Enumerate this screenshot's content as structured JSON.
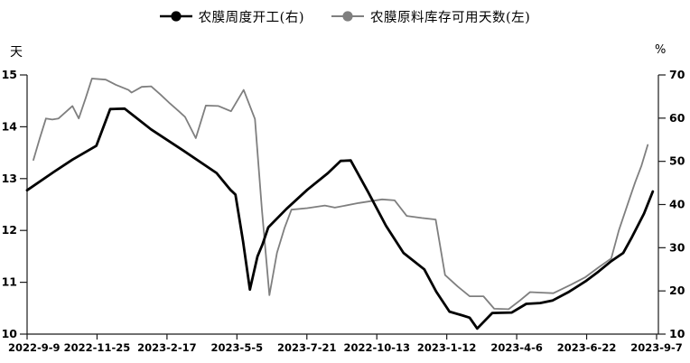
{
  "chart_data": {
    "type": "line",
    "title": "",
    "grid": false,
    "legend_position": "top",
    "left_axis": {
      "unit": "天",
      "min": 10,
      "max": 15,
      "ticks": [
        15,
        14,
        13,
        12,
        11,
        10
      ]
    },
    "right_axis": {
      "unit": "%",
      "min": 10,
      "max": 70,
      "ticks": [
        70,
        60,
        50,
        40,
        30,
        20,
        10
      ]
    },
    "x_tick_labels": [
      "2022-9-9",
      "2022-11-25",
      "2023-2-17",
      "2023-5-5",
      "2023-7-21",
      "2022-10-13",
      "2023-1-12",
      "2023-4-6",
      "2023-6-22",
      "2023-9-7"
    ],
    "series": [
      {
        "name": "农膜周度开工(右)",
        "axis": "right",
        "unit": "%",
        "color": "#000000",
        "line_width": 2.8,
        "marker": "circle",
        "points": [
          [
            0.0,
            43.3
          ],
          [
            0.043,
            47.6
          ],
          [
            0.072,
            50.4
          ],
          [
            0.11,
            53.6
          ],
          [
            0.132,
            62.1
          ],
          [
            0.155,
            62.2
          ],
          [
            0.197,
            57.4
          ],
          [
            0.248,
            52.5
          ],
          [
            0.301,
            47.3
          ],
          [
            0.323,
            43.4
          ],
          [
            0.331,
            42.3
          ],
          [
            0.343,
            31.5
          ],
          [
            0.354,
            20.3
          ],
          [
            0.366,
            28.0
          ],
          [
            0.374,
            30.8
          ],
          [
            0.383,
            34.7
          ],
          [
            0.412,
            39.0
          ],
          [
            0.445,
            43.4
          ],
          [
            0.478,
            47.3
          ],
          [
            0.498,
            50.1
          ],
          [
            0.514,
            50.2
          ],
          [
            0.542,
            42.8
          ],
          [
            0.57,
            35.1
          ],
          [
            0.598,
            28.8
          ],
          [
            0.631,
            25.0
          ],
          [
            0.65,
            19.8
          ],
          [
            0.671,
            15.2
          ],
          [
            0.692,
            14.3
          ],
          [
            0.703,
            13.8
          ],
          [
            0.715,
            11.3
          ],
          [
            0.739,
            14.9
          ],
          [
            0.77,
            15.0
          ],
          [
            0.793,
            17.0
          ],
          [
            0.815,
            17.2
          ],
          [
            0.835,
            17.8
          ],
          [
            0.861,
            19.8
          ],
          [
            0.887,
            22.2
          ],
          [
            0.908,
            24.5
          ],
          [
            0.928,
            26.9
          ],
          [
            0.947,
            28.8
          ],
          [
            0.961,
            32.5
          ],
          [
            0.98,
            37.9
          ],
          [
            0.994,
            43.0
          ]
        ]
      },
      {
        "name": "农膜原料库存可用天数(左)",
        "axis": "left",
        "unit": "天",
        "color": "#7f7f7f",
        "line_width": 1.8,
        "marker": "circle",
        "points": [
          [
            0.01,
            13.36
          ],
          [
            0.02,
            13.77
          ],
          [
            0.03,
            14.16
          ],
          [
            0.04,
            14.14
          ],
          [
            0.05,
            14.16
          ],
          [
            0.06,
            14.27
          ],
          [
            0.072,
            14.4
          ],
          [
            0.082,
            14.16
          ],
          [
            0.093,
            14.55
          ],
          [
            0.103,
            14.93
          ],
          [
            0.125,
            14.91
          ],
          [
            0.141,
            14.81
          ],
          [
            0.161,
            14.71
          ],
          [
            0.166,
            14.66
          ],
          [
            0.182,
            14.77
          ],
          [
            0.197,
            14.78
          ],
          [
            0.212,
            14.62
          ],
          [
            0.227,
            14.45
          ],
          [
            0.241,
            14.3
          ],
          [
            0.251,
            14.19
          ],
          [
            0.268,
            13.78
          ],
          [
            0.284,
            14.41
          ],
          [
            0.304,
            14.4
          ],
          [
            0.324,
            14.3
          ],
          [
            0.344,
            14.71
          ],
          [
            0.362,
            14.15
          ],
          [
            0.373,
            12.4
          ],
          [
            0.385,
            10.75
          ],
          [
            0.397,
            11.57
          ],
          [
            0.409,
            12.05
          ],
          [
            0.42,
            12.4
          ],
          [
            0.445,
            12.43
          ],
          [
            0.473,
            12.48
          ],
          [
            0.489,
            12.44
          ],
          [
            0.527,
            12.53
          ],
          [
            0.564,
            12.6
          ],
          [
            0.584,
            12.58
          ],
          [
            0.603,
            12.28
          ],
          [
            0.627,
            12.24
          ],
          [
            0.649,
            12.21
          ],
          [
            0.664,
            11.14
          ],
          [
            0.684,
            10.92
          ],
          [
            0.703,
            10.73
          ],
          [
            0.725,
            10.73
          ],
          [
            0.742,
            10.49
          ],
          [
            0.765,
            10.48
          ],
          [
            0.783,
            10.65
          ],
          [
            0.799,
            10.81
          ],
          [
            0.818,
            10.8
          ],
          [
            0.836,
            10.79
          ],
          [
            0.865,
            10.96
          ],
          [
            0.887,
            11.1
          ],
          [
            0.907,
            11.28
          ],
          [
            0.928,
            11.46
          ],
          [
            0.94,
            12.0
          ],
          [
            0.957,
            12.61
          ],
          [
            0.966,
            12.93
          ],
          [
            0.976,
            13.25
          ],
          [
            0.986,
            13.65
          ]
        ]
      }
    ]
  }
}
